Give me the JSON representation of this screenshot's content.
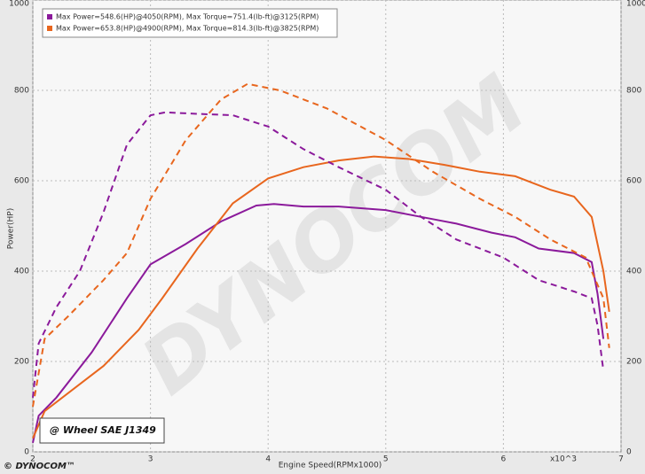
{
  "chart_data": {
    "type": "line",
    "xlabel": "Engine Speed(RPMx1000)",
    "ylabel": "Power(HP)",
    "x_multiplier": "x10^3",
    "annotation": "@ Wheel SAE J1349",
    "watermark": "DYNOCOM",
    "logo": "© DYNOCOM™",
    "xlim": [
      2,
      7
    ],
    "ylim": [
      0,
      1000
    ],
    "xticks": [
      2,
      3,
      4,
      5,
      6,
      7
    ],
    "yticks": [
      0,
      200,
      400,
      600,
      800,
      1000
    ],
    "grid": true,
    "series": [
      {
        "name": "Max Power=548.6(HP)@4050(RPM), Max Torque=751.4(lb-ft)@3125(RPM)",
        "color": "#8b1a9b",
        "dash": false,
        "x": [
          2.0,
          2.05,
          2.2,
          2.5,
          2.8,
          3.0,
          3.3,
          3.6,
          3.9,
          4.05,
          4.3,
          4.6,
          5.0,
          5.3,
          5.6,
          5.9,
          6.1,
          6.3,
          6.6,
          6.75,
          6.8,
          6.85
        ],
        "values": [
          20,
          80,
          120,
          220,
          340,
          415,
          460,
          510,
          545,
          548.6,
          543,
          543,
          535,
          520,
          505,
          485,
          475,
          450,
          440,
          420,
          350,
          250
        ]
      },
      {
        "name": "Max Power=653.8(HP)@4900(RPM), Max Torque=814.3(lb-ft)@3825(RPM)",
        "color": "#e8661e",
        "dash": false,
        "x": [
          2.0,
          2.1,
          2.3,
          2.6,
          2.9,
          3.1,
          3.4,
          3.7,
          4.0,
          4.3,
          4.6,
          4.9,
          5.2,
          5.5,
          5.8,
          6.1,
          6.4,
          6.6,
          6.75,
          6.85,
          6.9
        ],
        "values": [
          30,
          90,
          130,
          190,
          270,
          340,
          450,
          550,
          605,
          630,
          645,
          653.8,
          648,
          635,
          620,
          610,
          580,
          565,
          520,
          400,
          310
        ]
      },
      {
        "color": "#8b1a9b",
        "dash": true,
        "x": [
          2.0,
          2.05,
          2.2,
          2.4,
          2.6,
          2.8,
          3.0,
          3.125,
          3.4,
          3.7,
          4.0,
          4.3,
          4.6,
          5.0,
          5.3,
          5.6,
          6.0,
          6.3,
          6.6,
          6.75,
          6.8,
          6.85
        ],
        "values": [
          120,
          240,
          320,
          400,
          530,
          680,
          745,
          751.4,
          748,
          745,
          720,
          670,
          630,
          580,
          520,
          470,
          430,
          380,
          355,
          340,
          280,
          180
        ]
      },
      {
        "color": "#e8661e",
        "dash": true,
        "x": [
          2.0,
          2.1,
          2.3,
          2.6,
          2.8,
          3.0,
          3.3,
          3.6,
          3.825,
          4.1,
          4.5,
          5.0,
          5.4,
          5.8,
          6.1,
          6.4,
          6.7,
          6.85,
          6.9
        ],
        "values": [
          100,
          250,
          300,
          380,
          440,
          560,
          690,
          780,
          814.3,
          800,
          760,
          690,
          620,
          560,
          520,
          470,
          430,
          340,
          230
        ]
      }
    ]
  }
}
